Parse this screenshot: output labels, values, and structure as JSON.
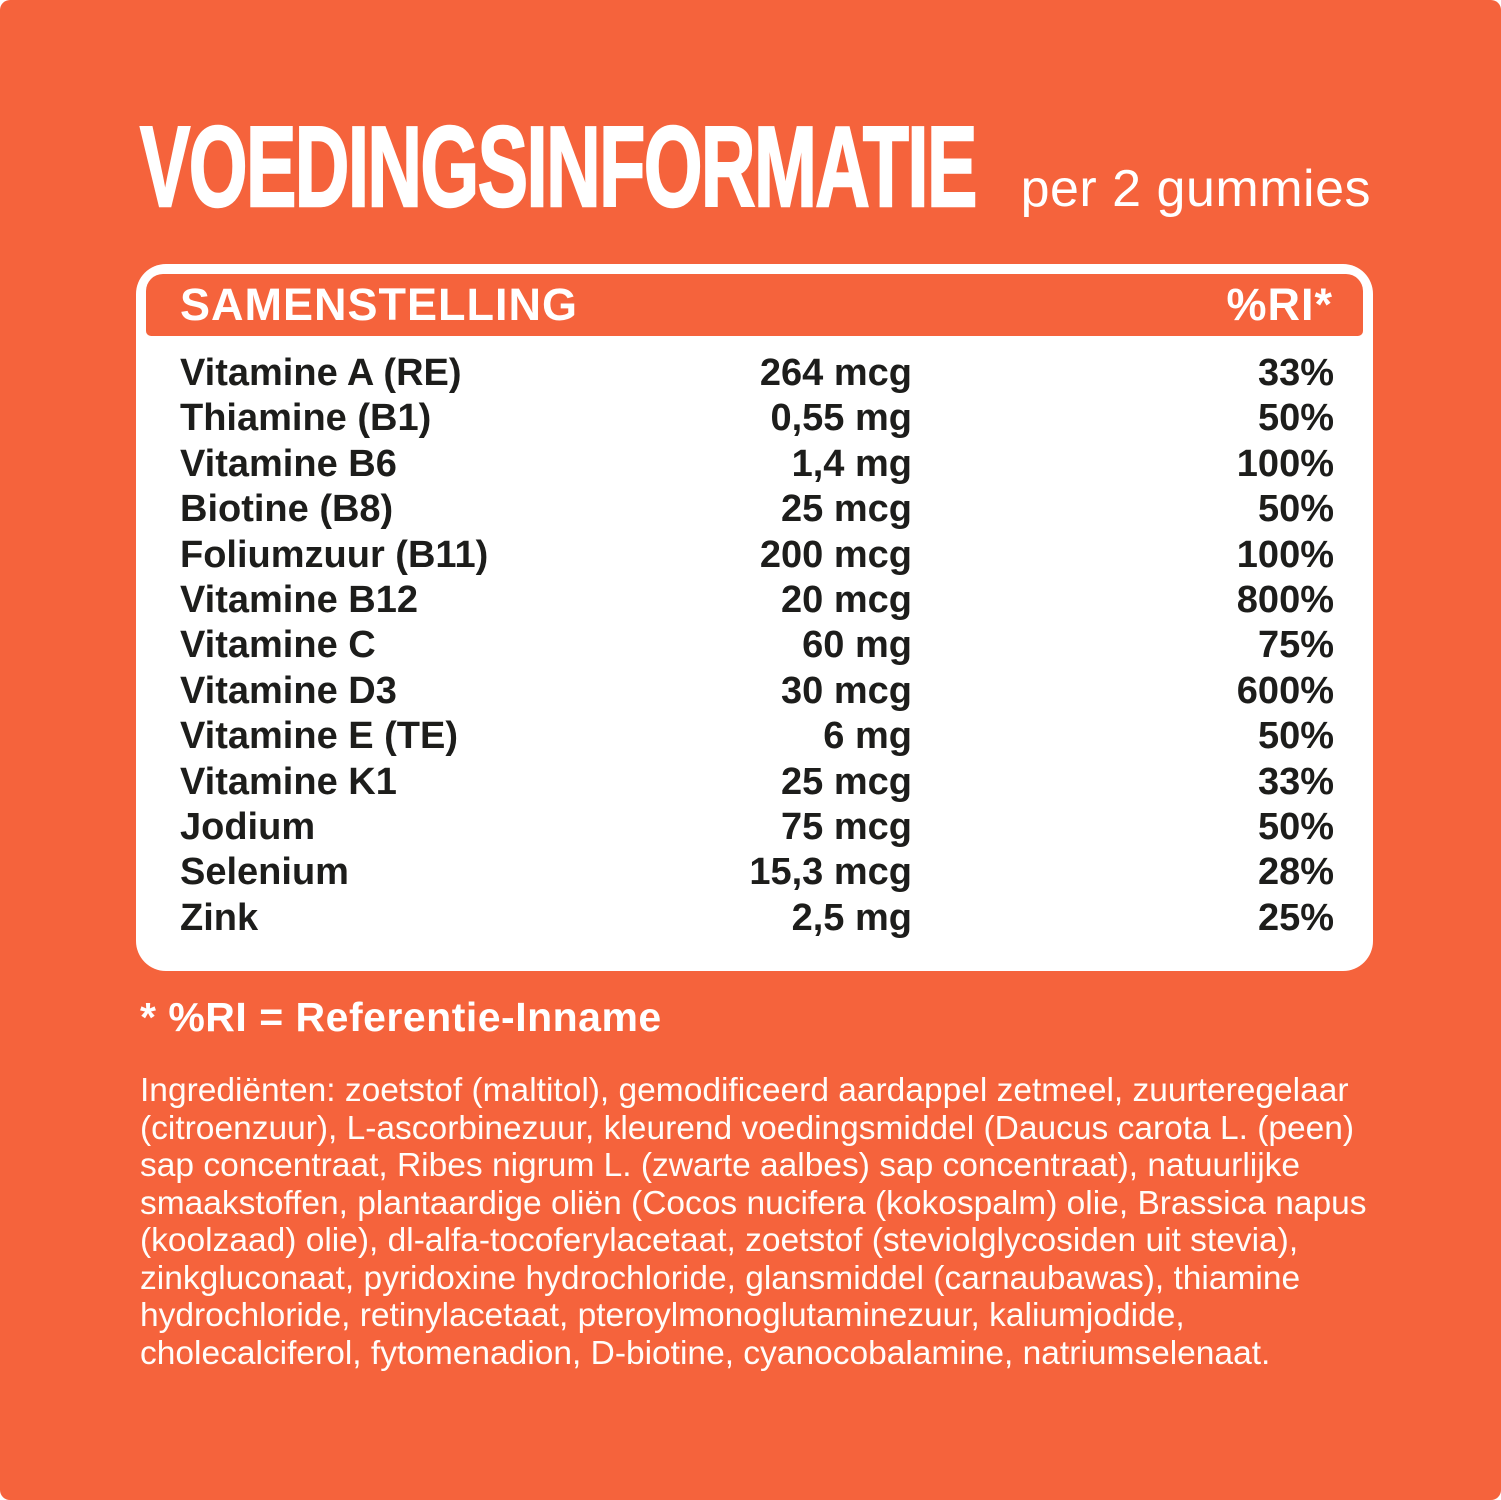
{
  "header": {
    "title": "VOEDINGSINFORMATIE",
    "serving": "per 2 gummies"
  },
  "table": {
    "columns": {
      "composition": "SAMENSTELLING",
      "ri": "%RI*"
    },
    "rows": [
      {
        "name": "Vitamine A (RE)",
        "amount": "264 mcg",
        "ri": "33%"
      },
      {
        "name": "Thiamine (B1)",
        "amount": "0,55 mg",
        "ri": "50%"
      },
      {
        "name": "Vitamine B6",
        "amount": "1,4 mg",
        "ri": "100%"
      },
      {
        "name": "Biotine (B8)",
        "amount": "25 mcg",
        "ri": "50%"
      },
      {
        "name": "Foliumzuur (B11)",
        "amount": "200 mcg",
        "ri": "100%"
      },
      {
        "name": "Vitamine B12",
        "amount": "20 mcg",
        "ri": "800%"
      },
      {
        "name": "Vitamine C",
        "amount": "60 mg",
        "ri": "75%"
      },
      {
        "name": "Vitamine D3",
        "amount": "30 mcg",
        "ri": "600%"
      },
      {
        "name": "Vitamine E (TE)",
        "amount": "6 mg",
        "ri": "50%"
      },
      {
        "name": "Vitamine K1",
        "amount": "25 mcg",
        "ri": "33%"
      },
      {
        "name": "Jodium",
        "amount": "75 mcg",
        "ri": "50%"
      },
      {
        "name": "Selenium",
        "amount": "15,3 mcg",
        "ri": "28%"
      },
      {
        "name": "Zink",
        "amount": "2,5 mg",
        "ri": "25%"
      }
    ]
  },
  "footnote": "* %RI = Referentie-Inname",
  "ingredients": "Ingrediënten: zoetstof (maltitol), gemodificeerd aardappel zetmeel, zuurteregelaar (citroenzuur), L-ascorbinezuur, kleurend voedingsmiddel (Daucus carota L. (peen) sap concentraat, Ribes nigrum L. (zwarte aalbes) sap concentraat), natuurlijke smaakstoffen, plantaardige oliën (Cocos nucifera (kokospalm) olie, Brassica napus (koolzaad) olie), dl-alfa-tocoferylacetaat, zoetstof (steviolglycosiden uit stevia), zinkgluconaat, pyridoxine hydrochloride, glansmiddel (carnaubawas), thiamine hydrochloride, retinylacetaat, pteroylmonoglutaminezuur, kaliumjodide, cholecalciferol, fytomenadion, D-biotine, cyanocobalamine, natriumselenaat.",
  "colors": {
    "background_orange": "#F5633C",
    "card_white": "#FFFFFF",
    "table_text_dark": "#1D1D1B",
    "light_text": "#FFFFFF"
  }
}
